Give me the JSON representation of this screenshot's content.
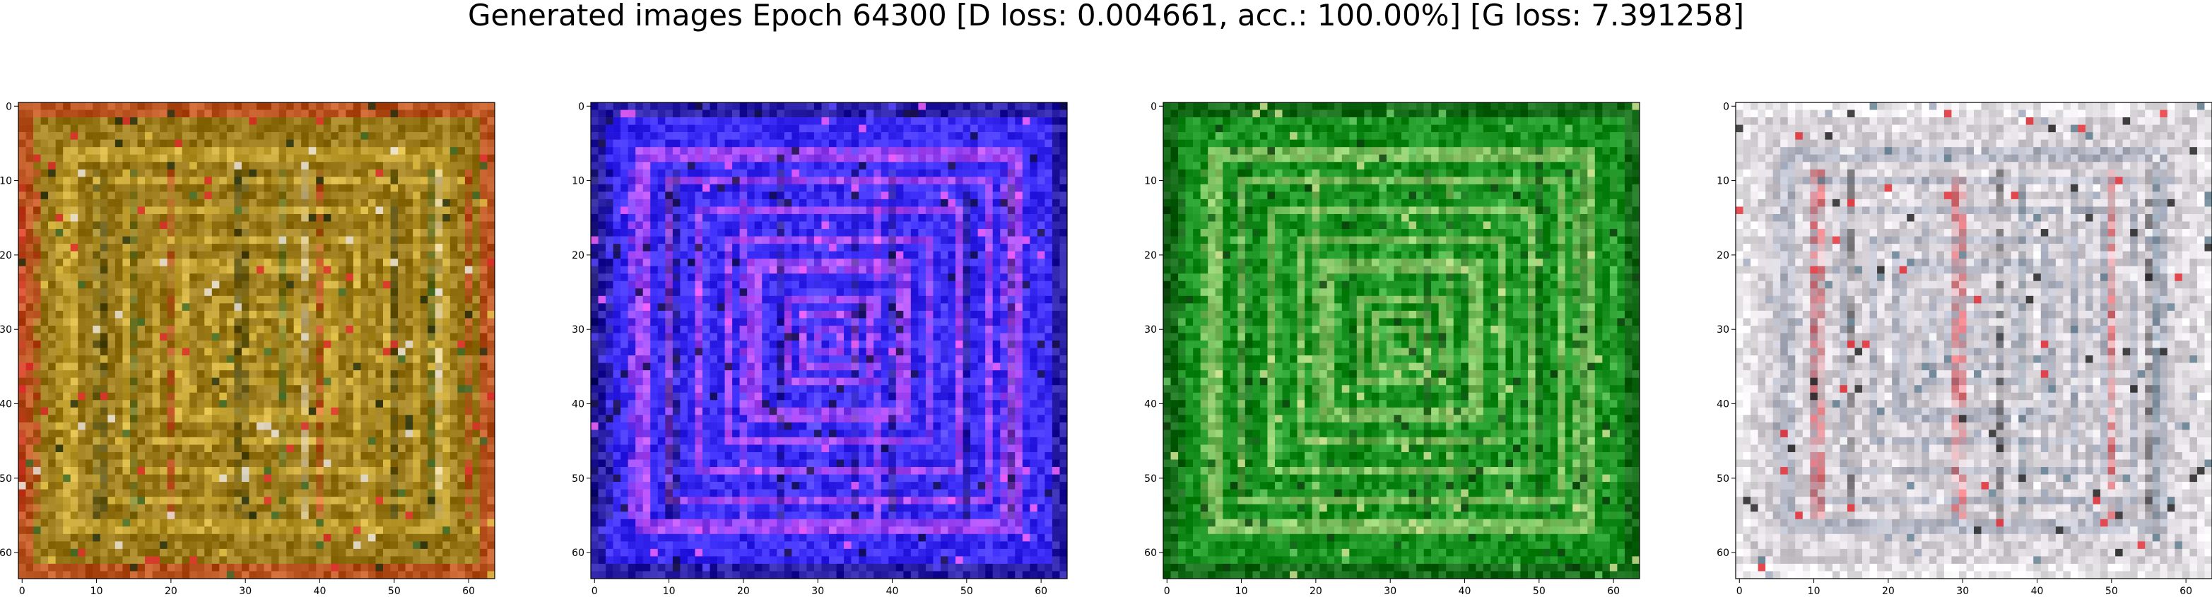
{
  "figure": {
    "title": "Generated images Epoch 64300 [D loss: 0.004661, acc.: 100.00%] [G loss: 7.391258]"
  },
  "panels": [
    {
      "id": "sample-1",
      "base_color": "#9a7a1a",
      "accent_colors": [
        "#e0272a",
        "#e8c64a",
        "#1e2a0c",
        "#3a6b2a",
        "#f0ece8"
      ],
      "x_ticks": [
        "0",
        "10",
        "20",
        "30",
        "40",
        "50",
        "60"
      ],
      "y_ticks": [
        "0",
        "10",
        "20",
        "30",
        "40",
        "50",
        "60"
      ]
    },
    {
      "id": "sample-2",
      "base_color": "#3b2cf5",
      "accent_colors": [
        "#0d0a40",
        "#ff66ff",
        "#1a1140",
        "#5c4cff"
      ],
      "x_ticks": [
        "0",
        "10",
        "20",
        "30",
        "40",
        "50",
        "60"
      ],
      "y_ticks": [
        "0",
        "10",
        "20",
        "30",
        "40",
        "50",
        "60"
      ]
    },
    {
      "id": "sample-3",
      "base_color": "#18901f",
      "accent_colors": [
        "#0a3a0a",
        "#d9e89a",
        "#0e5c14",
        "#6fcf6a"
      ],
      "x_ticks": [
        "0",
        "10",
        "20",
        "30",
        "40",
        "50",
        "60"
      ],
      "y_ticks": [
        "0",
        "10",
        "20",
        "30",
        "40",
        "50",
        "60"
      ]
    },
    {
      "id": "sample-4",
      "base_color": "#d8d3d8",
      "accent_colors": [
        "#ffffff",
        "#9aa4b8",
        "#e8262e",
        "#1a1a1a",
        "#5c7a8c"
      ],
      "x_ticks": [
        "0",
        "10",
        "20",
        "30",
        "40",
        "50",
        "60"
      ],
      "y_ticks": [
        "0",
        "10",
        "20",
        "30",
        "40",
        "50",
        "60"
      ]
    }
  ]
}
